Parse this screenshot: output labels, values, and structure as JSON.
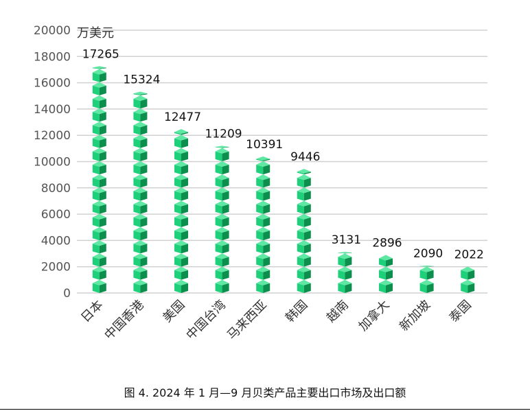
{
  "caption": "图 4.  2024 年 1 月—9 月贝类产品主要出口市场及出口额",
  "chart_data": {
    "type": "bar",
    "unit_label": "万美元",
    "categories": [
      "日本",
      "中国香港",
      "美国",
      "中国台湾",
      "马来西亚",
      "韩国",
      "越南",
      "加拿大",
      "新加坡",
      "泰国"
    ],
    "values": [
      17265,
      15324,
      12477,
      11209,
      10391,
      9446,
      3131,
      2896,
      2090,
      2022
    ],
    "yticks": [
      0,
      2000,
      4000,
      6000,
      8000,
      10000,
      12000,
      14000,
      16000,
      18000,
      20000
    ],
    "ylim": [
      0,
      20000
    ],
    "grid": true,
    "legend": "none",
    "colors": {
      "bar_front": "#1fd07a",
      "bar_side": "#0c8f4c",
      "bar_top": "#5fe8a4",
      "grid": "#d0d0d0"
    }
  }
}
